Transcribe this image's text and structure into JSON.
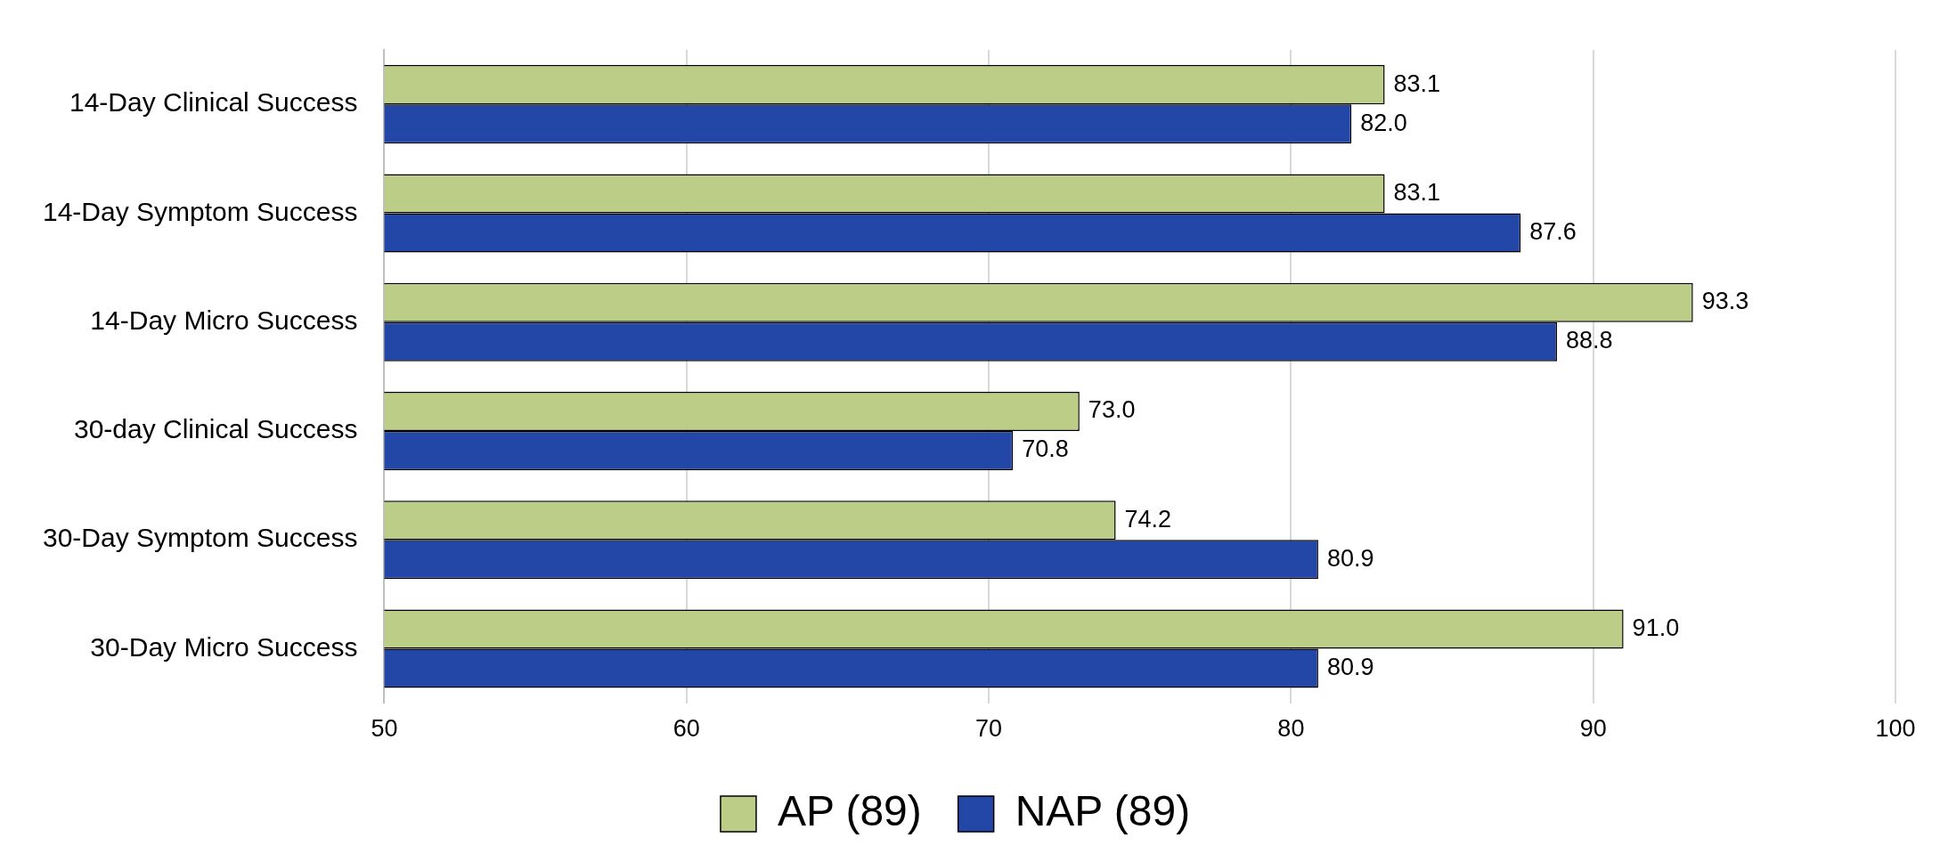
{
  "chart_data": {
    "type": "bar",
    "orientation": "horizontal",
    "categories": [
      "14-Day Clinical Success",
      "14-Day Symptom Success",
      "14-Day Micro Success",
      "30-day Clinical Success",
      "30-Day Symptom Success",
      "30-Day Micro Success"
    ],
    "series": [
      {
        "name": "AP (89)",
        "color": "#bccd87",
        "values": [
          83.1,
          83.1,
          93.3,
          73.0,
          74.2,
          91.0
        ],
        "value_labels": [
          "83.1",
          "83.1",
          "93.3",
          "73.0",
          "74.2",
          "91.0"
        ]
      },
      {
        "name": "NAP (89)",
        "color": "#2347a6",
        "values": [
          82.0,
          87.6,
          88.8,
          70.8,
          80.9,
          80.9
        ],
        "value_labels": [
          "82.0",
          "87.6",
          "88.8",
          "70.8",
          "80.9",
          "80.9"
        ]
      }
    ],
    "xlim": [
      50,
      100
    ],
    "xticks": [
      50,
      60,
      70,
      80,
      90,
      100
    ],
    "grid": "x",
    "legend": "bottom"
  }
}
